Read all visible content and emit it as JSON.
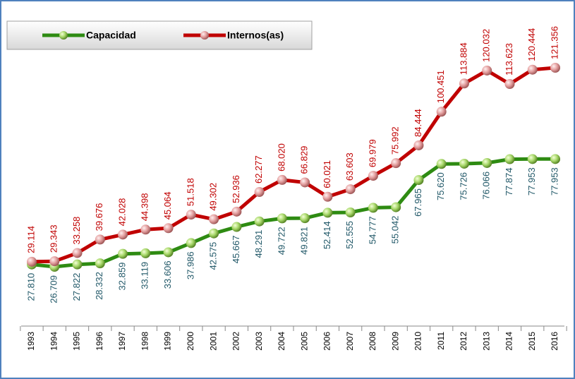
{
  "chart_data": {
    "type": "line",
    "categories": [
      "1993",
      "1994",
      "1995",
      "1996",
      "1997",
      "1998",
      "1999",
      "2000",
      "2001",
      "2002",
      "2003",
      "2004",
      "2005",
      "2006",
      "2007",
      "2008",
      "2009",
      "2010",
      "2011",
      "2012",
      "2013",
      "2014",
      "2015",
      "2016"
    ],
    "series": [
      {
        "name": "Capacidad",
        "color": "#2e8b12",
        "values": [
          27810,
          26709,
          27822,
          28332,
          32859,
          33119,
          33606,
          37986,
          42575,
          45667,
          48291,
          49722,
          49821,
          52414,
          52555,
          54777,
          55042,
          67965,
          75620,
          75726,
          76066,
          77874,
          77953,
          77953
        ],
        "value_labels": [
          "27.810",
          "26.709",
          "27.822",
          "28.332",
          "32.859",
          "33.119",
          "33.606",
          "37.986",
          "42.575",
          "45.667",
          "48.291",
          "49.722",
          "49.821",
          "52.414",
          "52.555",
          "54.777",
          "55.042",
          "67.965",
          "75.620",
          "75.726",
          "76.066",
          "77.874",
          "77.953",
          "77.953"
        ]
      },
      {
        "name": "Internos(as)",
        "color": "#c00000",
        "values": [
          29114,
          29343,
          33258,
          39676,
          42028,
          44398,
          45064,
          51518,
          49302,
          52936,
          62277,
          68020,
          66829,
          60021,
          63603,
          69979,
          75992,
          84444,
          100451,
          113884,
          120032,
          113623,
          120444,
          121356
        ],
        "value_labels": [
          "29.114",
          "29.343",
          "33.258",
          "39.676",
          "42.028",
          "44.398",
          "45.064",
          "51.518",
          "49.302",
          "52.936",
          "62.277",
          "68.020",
          "66.829",
          "60.021",
          "63.603",
          "69.979",
          "75.992",
          "84.444",
          "100.451",
          "113.884",
          "120.032",
          "113.623",
          "120.444",
          "121.356"
        ]
      }
    ]
  }
}
